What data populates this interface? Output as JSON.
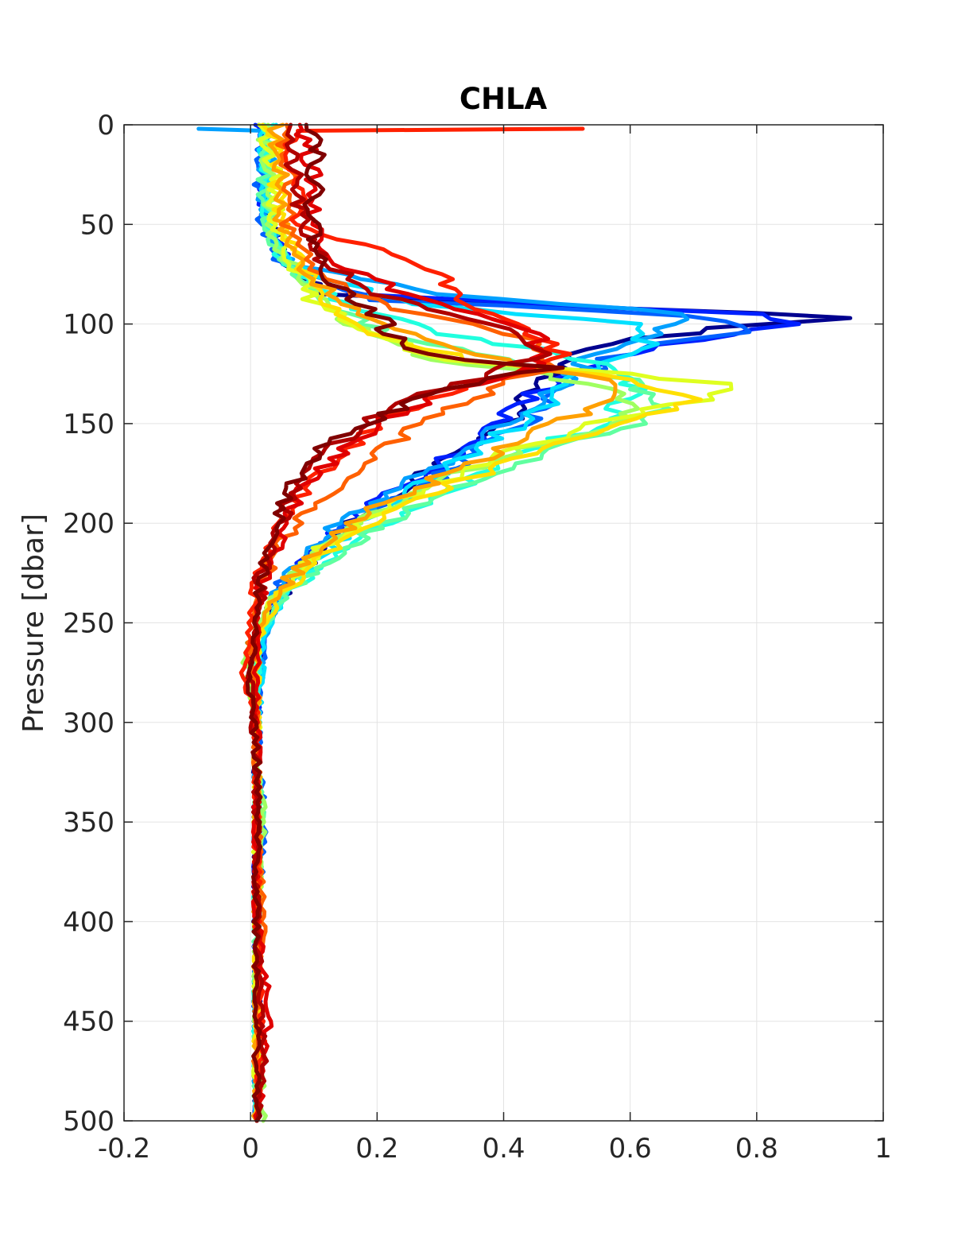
{
  "chart_data": {
    "type": "line",
    "title": "CHLA",
    "xlabel": "",
    "ylabel": "Pressure [dbar]",
    "xlim": [
      -0.2,
      1
    ],
    "ylim": [
      0,
      500
    ],
    "y_reversed": true,
    "grid": true,
    "xticks": [
      -0.2,
      0,
      0.2,
      0.4,
      0.6,
      0.8,
      1
    ],
    "xtick_labels": [
      "-0.2",
      "0",
      "0.2",
      "0.4",
      "0.6",
      "0.8",
      "1"
    ],
    "yticks": [
      0,
      50,
      100,
      150,
      200,
      250,
      300,
      350,
      400,
      450,
      500
    ],
    "ytick_labels": [
      "0",
      "50",
      "100",
      "150",
      "200",
      "250",
      "300",
      "350",
      "400",
      "450",
      "500"
    ],
    "colormap": "jet",
    "colormap_colors": [
      "#00008f",
      "#0020ff",
      "#00a0ff",
      "#20ffdf",
      "#9fff60",
      "#ffe000",
      "#ff6000",
      "#e00000",
      "#800000"
    ],
    "line_width": 5,
    "series": [
      {
        "color": "#00008f",
        "y": [
          0,
          10,
          30,
          50,
          70,
          85,
          92,
          97,
          102,
          110,
          118,
          125,
          135,
          150,
          170,
          190,
          210,
          230,
          250,
          280,
          320,
          360,
          400,
          450,
          500
        ],
        "x": [
          0.02,
          0.03,
          0.02,
          0.03,
          0.05,
          0.12,
          0.6,
          0.96,
          0.75,
          0.55,
          0.5,
          0.48,
          0.45,
          0.4,
          0.3,
          0.2,
          0.12,
          0.06,
          0.02,
          0.01,
          0.01,
          0.01,
          0.01,
          0.01,
          0.01
        ]
      },
      {
        "color": "#0020ff",
        "y": [
          0,
          10,
          30,
          50,
          70,
          85,
          95,
          100,
          108,
          115,
          125,
          140,
          160,
          180,
          200,
          220,
          240,
          270,
          300,
          350,
          400,
          450,
          500
        ],
        "x": [
          0.01,
          0.02,
          0.02,
          0.03,
          0.06,
          0.15,
          0.78,
          0.87,
          0.7,
          0.6,
          0.5,
          0.42,
          0.35,
          0.25,
          0.15,
          0.08,
          0.03,
          0.01,
          0.01,
          0.01,
          0.01,
          0.01,
          0.01
        ]
      },
      {
        "color": "#0060ff",
        "y": [
          0,
          10,
          30,
          50,
          70,
          88,
          96,
          104,
          110,
          120,
          130,
          145,
          165,
          185,
          205,
          230,
          260,
          300,
          350,
          400,
          450,
          500
        ],
        "x": [
          0.02,
          0.02,
          0.01,
          0.02,
          0.05,
          0.2,
          0.72,
          0.8,
          0.65,
          0.55,
          0.5,
          0.45,
          0.36,
          0.25,
          0.14,
          0.05,
          0.02,
          0.01,
          0.02,
          0.01,
          0.01,
          0.01
        ]
      },
      {
        "color": "#00a0ff",
        "y": [
          2,
          3,
          10,
          30,
          50,
          70,
          85,
          95,
          105,
          115,
          125,
          140,
          160,
          180,
          200,
          230,
          260,
          300,
          350,
          400,
          450,
          500
        ],
        "x": [
          -0.07,
          0.02,
          0.03,
          0.02,
          0.03,
          0.06,
          0.3,
          0.7,
          0.62,
          0.55,
          0.5,
          0.45,
          0.36,
          0.25,
          0.14,
          0.05,
          0.02,
          0.01,
          0.01,
          0.01,
          0.01,
          0.01
        ]
      },
      {
        "color": "#00e0ff",
        "y": [
          0,
          10,
          30,
          50,
          70,
          90,
          100,
          110,
          120,
          130,
          145,
          165,
          185,
          205,
          230,
          260,
          300,
          350,
          400,
          450,
          500
        ],
        "x": [
          0.03,
          0.02,
          0.02,
          0.03,
          0.06,
          0.25,
          0.6,
          0.62,
          0.55,
          0.5,
          0.45,
          0.35,
          0.25,
          0.15,
          0.06,
          0.02,
          0.01,
          0.01,
          0.01,
          0.01,
          0.01
        ]
      },
      {
        "color": "#20ffdf",
        "y": [
          0,
          10,
          30,
          50,
          70,
          90,
          105,
          115,
          125,
          135,
          150,
          170,
          190,
          210,
          235,
          260,
          300,
          350,
          400,
          450,
          500
        ],
        "x": [
          0.03,
          0.03,
          0.02,
          0.02,
          0.05,
          0.15,
          0.3,
          0.5,
          0.6,
          0.62,
          0.55,
          0.4,
          0.28,
          0.16,
          0.06,
          0.01,
          0.01,
          0.01,
          0.01,
          0.01,
          0.01
        ]
      },
      {
        "color": "#60ffa0",
        "y": [
          0,
          10,
          30,
          50,
          70,
          90,
          105,
          115,
          128,
          140,
          150,
          160,
          175,
          190,
          210,
          235,
          260,
          300,
          350,
          400,
          450,
          500
        ],
        "x": [
          0.02,
          0.03,
          0.02,
          0.03,
          0.05,
          0.12,
          0.22,
          0.35,
          0.6,
          0.66,
          0.6,
          0.5,
          0.38,
          0.27,
          0.16,
          0.06,
          0.0,
          0.01,
          0.02,
          0.01,
          0.01,
          0.01
        ]
      },
      {
        "color": "#9fff60",
        "y": [
          0,
          10,
          30,
          50,
          70,
          90,
          105,
          118,
          130,
          140,
          150,
          160,
          172,
          185,
          200,
          220,
          245,
          265,
          300,
          350,
          400,
          450,
          500
        ],
        "x": [
          0.03,
          0.02,
          0.03,
          0.03,
          0.06,
          0.12,
          0.18,
          0.3,
          0.55,
          0.62,
          0.6,
          0.45,
          0.35,
          0.25,
          0.17,
          0.08,
          0.02,
          -0.01,
          0.01,
          0.02,
          0.01,
          0.01,
          0.02
        ]
      },
      {
        "color": "#dfff20",
        "y": [
          0,
          10,
          30,
          50,
          70,
          90,
          105,
          118,
          125,
          130,
          138,
          150,
          165,
          180,
          195,
          215,
          240,
          270,
          300,
          350,
          400,
          450,
          500
        ],
        "x": [
          0.02,
          0.03,
          0.04,
          0.04,
          0.07,
          0.1,
          0.2,
          0.3,
          0.58,
          0.74,
          0.7,
          0.55,
          0.4,
          0.3,
          0.2,
          0.1,
          0.03,
          0.0,
          0.01,
          0.01,
          0.01,
          0.01,
          0.01
        ]
      },
      {
        "color": "#ffe000",
        "y": [
          0,
          10,
          30,
          50,
          70,
          90,
          105,
          118,
          128,
          138,
          150,
          165,
          180,
          195,
          215,
          235,
          260,
          300,
          350,
          400,
          450,
          500
        ],
        "x": [
          0.03,
          0.04,
          0.04,
          0.05,
          0.08,
          0.12,
          0.2,
          0.35,
          0.6,
          0.69,
          0.6,
          0.45,
          0.32,
          0.22,
          0.12,
          0.05,
          0.01,
          0.01,
          0.01,
          0.01,
          0.01,
          0.01
        ]
      },
      {
        "color": "#ffa000",
        "y": [
          0,
          10,
          30,
          50,
          70,
          90,
          105,
          118,
          128,
          138,
          150,
          165,
          180,
          195,
          215,
          235,
          260,
          300,
          350,
          400,
          450,
          500
        ],
        "x": [
          0.04,
          0.04,
          0.05,
          0.05,
          0.08,
          0.14,
          0.25,
          0.4,
          0.55,
          0.56,
          0.48,
          0.38,
          0.28,
          0.18,
          0.1,
          0.04,
          0.01,
          0.01,
          0.01,
          0.01,
          0.01,
          0.01
        ]
      },
      {
        "color": "#ff6000",
        "y": [
          0,
          10,
          30,
          50,
          70,
          90,
          100,
          110,
          120,
          130,
          145,
          160,
          175,
          190,
          210,
          230,
          260,
          300,
          350,
          400,
          450,
          500
        ],
        "x": [
          0.05,
          0.05,
          0.06,
          0.06,
          0.09,
          0.2,
          0.35,
          0.45,
          0.48,
          0.4,
          0.3,
          0.22,
          0.16,
          0.1,
          0.05,
          0.02,
          0.0,
          0.01,
          0.01,
          0.02,
          0.01,
          0.01
        ]
      },
      {
        "color": "#ff2000",
        "y": [
          2,
          3,
          10,
          30,
          50,
          65,
          70,
          75,
          85,
          95,
          105,
          115,
          125,
          135,
          150,
          165,
          180,
          200,
          220,
          245,
          275,
          300,
          350,
          400,
          450,
          500
        ],
        "x": [
          0.52,
          0.07,
          0.06,
          0.07,
          0.08,
          0.22,
          0.28,
          0.3,
          0.32,
          0.38,
          0.45,
          0.48,
          0.42,
          0.3,
          0.2,
          0.15,
          0.09,
          0.05,
          0.02,
          0.0,
          -0.01,
          0.01,
          0.01,
          0.01,
          0.02,
          0.01
        ]
      },
      {
        "color": "#e00000",
        "y": [
          0,
          10,
          30,
          50,
          70,
          85,
          95,
          105,
          115,
          125,
          135,
          150,
          165,
          180,
          200,
          220,
          245,
          280,
          320,
          360,
          400,
          445,
          500
        ],
        "x": [
          0.08,
          0.09,
          0.1,
          0.1,
          0.14,
          0.25,
          0.35,
          0.44,
          0.47,
          0.42,
          0.3,
          0.2,
          0.14,
          0.09,
          0.05,
          0.03,
          0.01,
          0.01,
          0.01,
          0.01,
          0.01,
          0.03,
          0.01
        ]
      },
      {
        "color": "#b00000",
        "y": [
          0,
          10,
          30,
          50,
          70,
          85,
          95,
          105,
          115,
          125,
          135,
          150,
          165,
          180,
          200,
          220,
          245,
          280,
          320,
          360,
          400,
          470,
          500
        ],
        "x": [
          0.07,
          0.06,
          0.07,
          0.08,
          0.12,
          0.2,
          0.3,
          0.42,
          0.46,
          0.38,
          0.28,
          0.18,
          0.12,
          0.08,
          0.05,
          0.02,
          0.01,
          0.0,
          0.01,
          0.01,
          0.01,
          0.02,
          0.01
        ]
      },
      {
        "color": "#800000",
        "y": [
          0,
          10,
          30,
          50,
          70,
          85,
          95,
          105,
          112,
          118,
          122,
          130,
          140,
          150,
          160,
          175,
          190,
          205,
          225,
          245,
          280,
          320,
          360,
          400,
          450,
          500
        ],
        "x": [
          0.1,
          0.11,
          0.1,
          0.1,
          0.11,
          0.15,
          0.2,
          0.22,
          0.24,
          0.35,
          0.47,
          0.35,
          0.25,
          0.18,
          0.12,
          0.08,
          0.05,
          0.03,
          0.02,
          0.01,
          0.0,
          0.01,
          0.01,
          0.01,
          0.01,
          0.01
        ]
      }
    ]
  }
}
